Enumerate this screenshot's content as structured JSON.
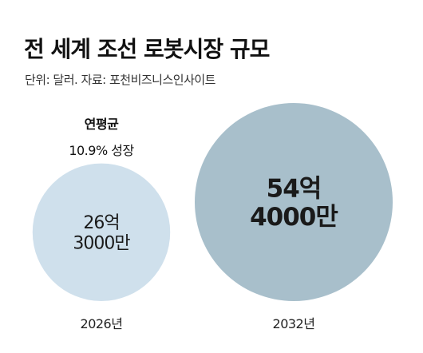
{
  "header": {
    "title": "전 세계 조선 로봇시장 규모",
    "subtitle": "단위: 달러. 자료: 포천비즈니스인사이트"
  },
  "annotation": {
    "line1": "연평균",
    "line2": "10.9% 성장"
  },
  "colors": {
    "small_bubble": "#cfe0ec",
    "large_bubble": "#a8bfcb",
    "text": "#1a1a1a"
  },
  "chart_data": {
    "type": "bubble",
    "categories": [
      "2026년",
      "2032년"
    ],
    "values": [
      2630000000,
      5440000000
    ],
    "value_labels": [
      [
        "26억",
        "3000만"
      ],
      [
        "54억",
        "4000만"
      ]
    ],
    "title": "전 세계 조선 로봇시장 규모",
    "unit": "달러",
    "annotation": "연평균 10.9% 성장"
  }
}
